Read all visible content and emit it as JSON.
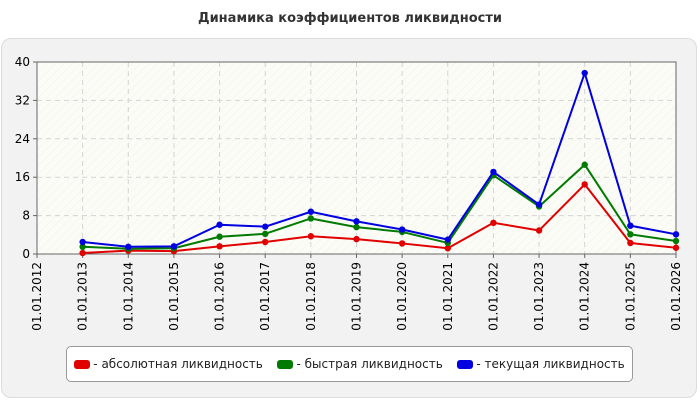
{
  "chart_data": {
    "type": "line",
    "title": "Динамика коэффициентов ликвидности",
    "xlabel": "",
    "ylabel": "",
    "categories": [
      "01.01.2012",
      "01.01.2013",
      "01.01.2014",
      "01.01.2015",
      "01.01.2016",
      "01.01.2017",
      "01.01.2018",
      "01.01.2019",
      "01.01.2020",
      "01.01.2021",
      "01.01.2022",
      "01.01.2023",
      "01.01.2024",
      "01.01.2025",
      "01.01.2026"
    ],
    "ylim": [
      0,
      40
    ],
    "yticks": [
      "0",
      "8",
      "16",
      "24",
      "32",
      "40"
    ],
    "grid": true,
    "legend_position": "bottom",
    "series": [
      {
        "name": "- абсолютная ликвидность",
        "color": "#e00000",
        "values": [
          null,
          0.2,
          0.7,
          0.6,
          1.6,
          2.5,
          3.7,
          3.1,
          2.2,
          1.2,
          6.5,
          4.9,
          14.5,
          2.3,
          1.3
        ]
      },
      {
        "name": "- быстрая ликвидность",
        "color": "#007a00",
        "values": [
          null,
          1.5,
          1.1,
          1.2,
          3.6,
          4.2,
          7.4,
          5.6,
          4.6,
          2.3,
          16.4,
          9.9,
          18.6,
          4.1,
          2.7
        ]
      },
      {
        "name": "- текущая ликвидность",
        "color": "#0000e0",
        "values": [
          null,
          2.5,
          1.5,
          1.6,
          6.1,
          5.7,
          8.8,
          6.8,
          5.1,
          3.0,
          17.1,
          10.3,
          37.7,
          5.9,
          4.1
        ]
      }
    ]
  }
}
